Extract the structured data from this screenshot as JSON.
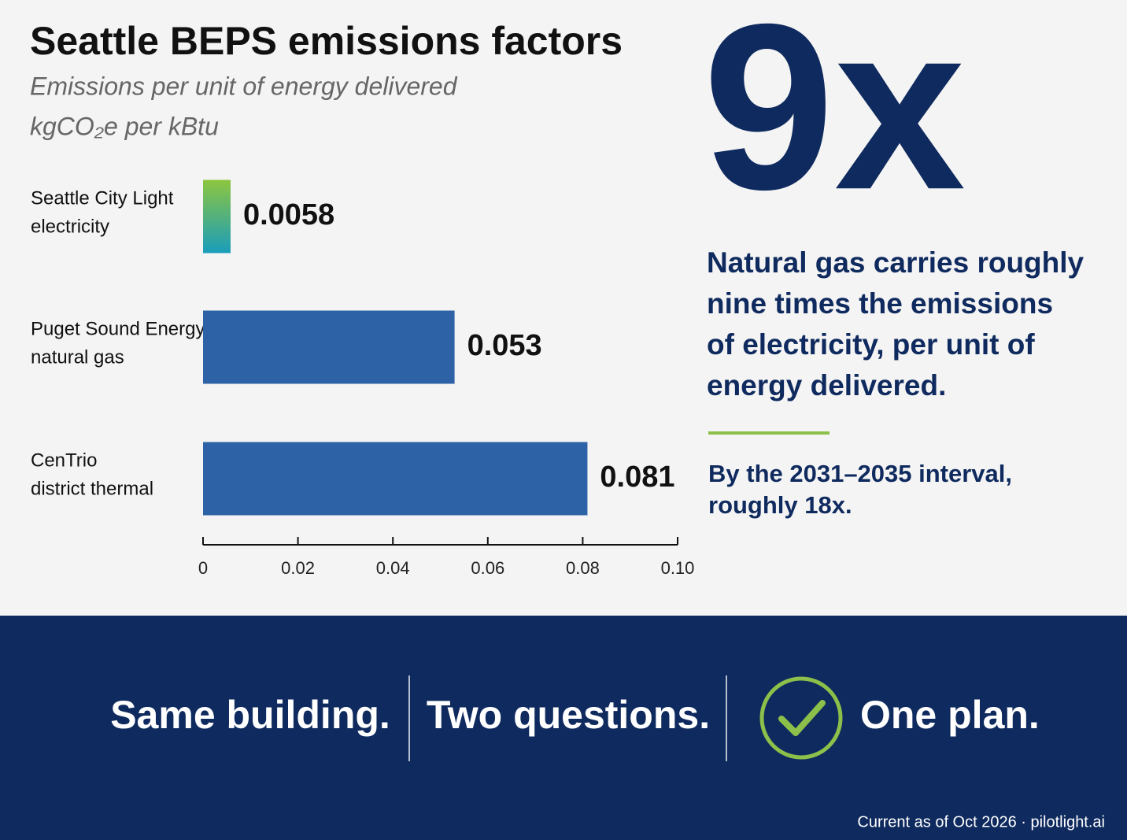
{
  "chart_data": {
    "type": "bar",
    "orientation": "horizontal",
    "title": "Seattle BEPS emissions factors",
    "subtitle": "Emissions per unit of energy delivered",
    "unit": "kgCO₂e per kBtu",
    "categories": [
      [
        "Seattle City Light",
        "electricity"
      ],
      [
        "Puget Sound Energy",
        "natural gas"
      ],
      [
        "CenTrio",
        "district thermal"
      ]
    ],
    "values": [
      0.0058,
      0.053,
      0.081
    ],
    "colors": [
      [
        "#8cc63f",
        "#1a9dbb"
      ],
      "#2e62a6",
      "#2e62a6"
    ],
    "xlim": [
      0,
      0.1
    ],
    "xticks": [
      0,
      0.02,
      0.04,
      0.06,
      0.08,
      {
        "value": 0.1,
        "label": "0.10"
      }
    ],
    "grid": false
  },
  "headline": {
    "big": "9x",
    "text": "Natural gas carries roughly nine times the emissions of electricity, per unit of energy delivered.",
    "note": "By the 2031–2035 interval, roughly 18x."
  },
  "band": {
    "items": [
      "Same building.",
      "Two questions.",
      "One plan."
    ]
  },
  "footer": "Current as of Oct 2026 · pilotlight.ai"
}
